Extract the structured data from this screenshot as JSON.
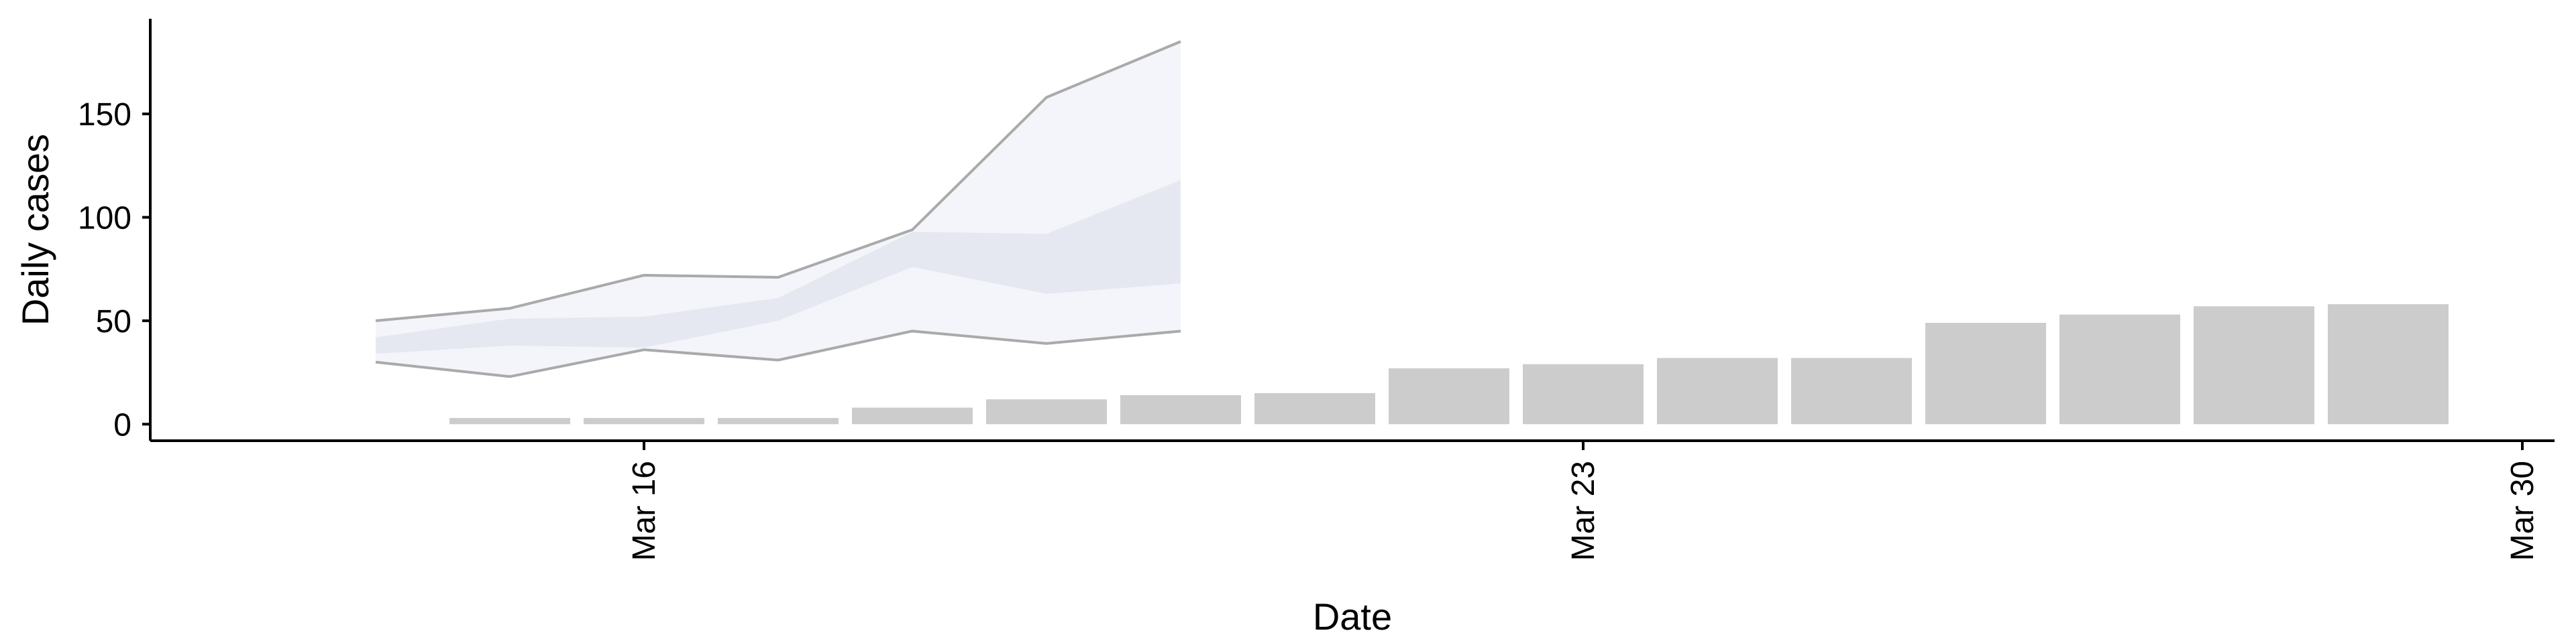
{
  "chart_data": {
    "type": "bar",
    "title": "",
    "xlabel": "Date",
    "ylabel": "Daily cases",
    "x_type": "date",
    "year": 2020,
    "xlim": [
      "2020-03-13",
      "2020-03-30"
    ],
    "ylim": [
      -8,
      196
    ],
    "x_ticks": [
      {
        "date": "2020-03-16",
        "label": "Mar 16"
      },
      {
        "date": "2020-03-23",
        "label": "Mar 23"
      },
      {
        "date": "2020-03-30",
        "label": "Mar 30"
      }
    ],
    "y_ticks": [
      {
        "value": 0,
        "label": "0"
      },
      {
        "value": 50,
        "label": "50"
      },
      {
        "value": 100,
        "label": "100"
      },
      {
        "value": 150,
        "label": "150"
      }
    ],
    "grid": false,
    "legend": "none",
    "bars": {
      "color": "#cccccc",
      "dates": [
        "2020-03-15",
        "2020-03-16",
        "2020-03-17",
        "2020-03-18",
        "2020-03-19",
        "2020-03-20",
        "2020-03-21",
        "2020-03-22",
        "2020-03-23",
        "2020-03-24",
        "2020-03-25",
        "2020-03-26",
        "2020-03-27",
        "2020-03-28",
        "2020-03-29"
      ],
      "values": [
        3,
        3,
        3,
        8,
        12,
        14,
        15,
        27,
        29,
        32,
        32,
        49,
        53,
        57,
        58
      ]
    },
    "bands": {
      "dates": [
        "2020-03-14",
        "2020-03-15",
        "2020-03-16",
        "2020-03-17",
        "2020-03-18",
        "2020-03-19",
        "2020-03-20"
      ],
      "outer_upper": [
        50,
        56,
        72,
        71,
        94,
        158,
        185
      ],
      "outer_lower": [
        30,
        23,
        36,
        31,
        45,
        39,
        45
      ],
      "inner_upper": [
        42,
        51,
        52,
        61,
        93,
        92,
        118
      ],
      "inner_lower": [
        34,
        38,
        37,
        50,
        76,
        63,
        68
      ],
      "outer_fill": "#f4f5fa",
      "inner_fill": "#e6e8f1",
      "outer_line_color": "#aaaaaa"
    }
  }
}
